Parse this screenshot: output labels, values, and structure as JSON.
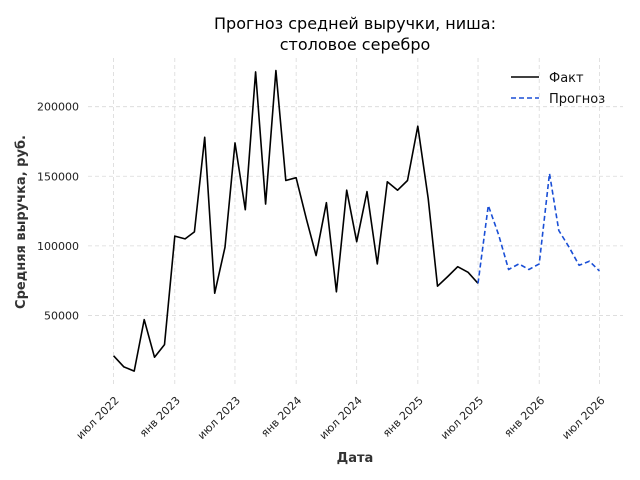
{
  "chart_data": {
    "type": "line",
    "title": [
      "Прогноз средней выручки, ниша:",
      "столовое серебро"
    ],
    "xlabel": "Дата",
    "ylabel": "Средняя выручка, руб.",
    "ylim": [
      0,
      235000
    ],
    "xlim": [
      "2022-04-15",
      "2026-09-10"
    ],
    "yticks": [
      50000,
      100000,
      150000,
      200000
    ],
    "xticks": [
      {
        "date": "2022-07-01",
        "label": "июл 2022"
      },
      {
        "date": "2023-01-01",
        "label": "янв 2023"
      },
      {
        "date": "2023-07-01",
        "label": "июл 2023"
      },
      {
        "date": "2024-01-01",
        "label": "янв 2024"
      },
      {
        "date": "2024-07-01",
        "label": "июл 2024"
      },
      {
        "date": "2025-01-01",
        "label": "янв 2025"
      },
      {
        "date": "2025-07-01",
        "label": "июл 2025"
      },
      {
        "date": "2026-01-01",
        "label": "янв 2026"
      },
      {
        "date": "2026-07-01",
        "label": "июл 2026"
      }
    ],
    "grid": true,
    "legend_position": "top-right",
    "series": [
      {
        "name": "Факт",
        "color": "#000000",
        "style": "solid",
        "points": [
          [
            "2022-07-01",
            21000
          ],
          [
            "2022-08-01",
            13000
          ],
          [
            "2022-09-01",
            10000
          ],
          [
            "2022-10-01",
            47000
          ],
          [
            "2022-11-01",
            20000
          ],
          [
            "2022-12-01",
            29000
          ],
          [
            "2023-01-01",
            107000
          ],
          [
            "2023-02-01",
            105000
          ],
          [
            "2023-03-01",
            110000
          ],
          [
            "2023-04-01",
            178000
          ],
          [
            "2023-05-01",
            66000
          ],
          [
            "2023-06-01",
            99000
          ],
          [
            "2023-07-01",
            174000
          ],
          [
            "2023-08-01",
            126000
          ],
          [
            "2023-09-01",
            225000
          ],
          [
            "2023-10-01",
            130000
          ],
          [
            "2023-11-01",
            226000
          ],
          [
            "2023-12-01",
            147000
          ],
          [
            "2024-01-01",
            149000
          ],
          [
            "2024-02-01",
            119000
          ],
          [
            "2024-03-01",
            93000
          ],
          [
            "2024-04-01",
            131000
          ],
          [
            "2024-05-01",
            67000
          ],
          [
            "2024-06-01",
            140000
          ],
          [
            "2024-07-01",
            103000
          ],
          [
            "2024-08-01",
            139000
          ],
          [
            "2024-09-01",
            87000
          ],
          [
            "2024-10-01",
            146000
          ],
          [
            "2024-11-01",
            140000
          ],
          [
            "2024-12-01",
            147000
          ],
          [
            "2025-01-01",
            186000
          ],
          [
            "2025-02-01",
            134000
          ],
          [
            "2025-03-01",
            71000
          ],
          [
            "2025-04-01",
            78000
          ],
          [
            "2025-05-01",
            85000
          ],
          [
            "2025-06-01",
            81000
          ],
          [
            "2025-07-01",
            73000
          ]
        ]
      },
      {
        "name": "Прогноз",
        "color": "#1a4fd6",
        "style": "dashed",
        "points": [
          [
            "2025-07-01",
            73000
          ],
          [
            "2025-08-01",
            129000
          ],
          [
            "2025-09-01",
            108000
          ],
          [
            "2025-10-01",
            83000
          ],
          [
            "2025-11-01",
            87000
          ],
          [
            "2025-12-01",
            83000
          ],
          [
            "2026-01-01",
            87000
          ],
          [
            "2026-02-01",
            152000
          ],
          [
            "2026-03-01",
            111000
          ],
          [
            "2026-04-01",
            99000
          ],
          [
            "2026-05-01",
            86000
          ],
          [
            "2026-06-01",
            89000
          ],
          [
            "2026-07-01",
            82000
          ]
        ]
      }
    ]
  }
}
